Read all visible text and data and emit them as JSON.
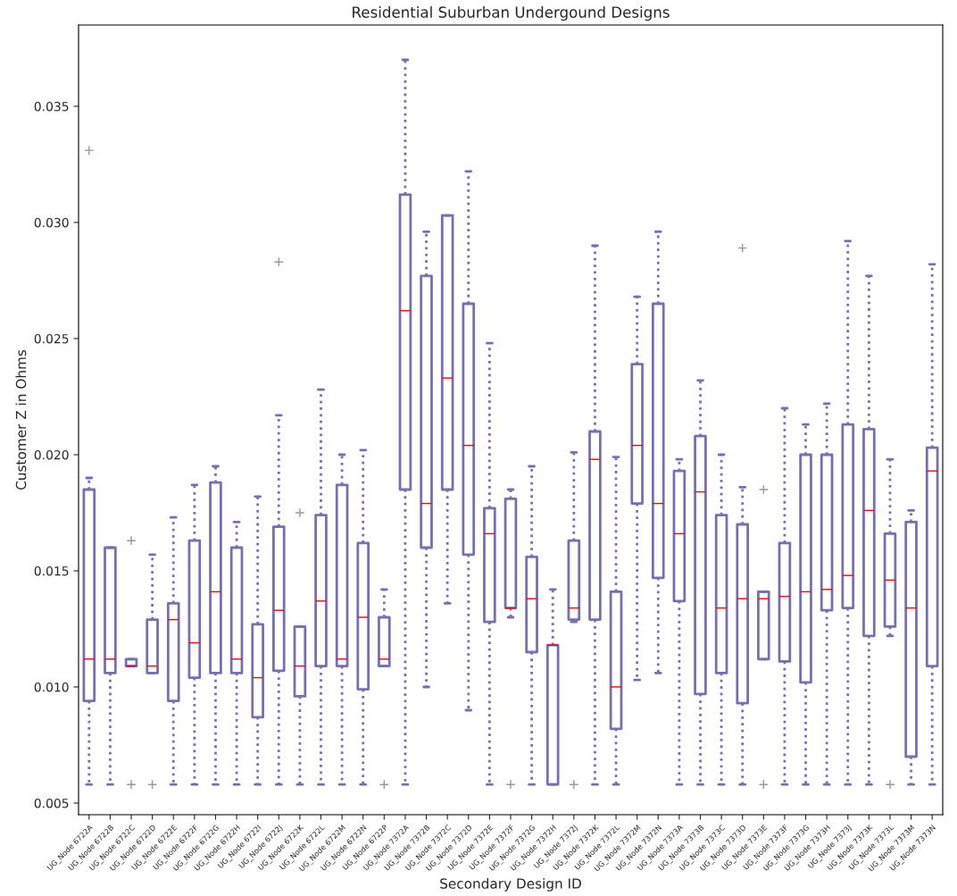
{
  "chart_data": {
    "type": "box",
    "title": "Residential Suburban Undergound Designs",
    "xlabel": "Secondary Design ID",
    "ylabel": "Customer Z in Ohms",
    "categories": [
      "UG_Node 6722A",
      "UG_Node 6722B",
      "UG_Node 6722C",
      "UG_Node 6722D",
      "UG_Node 6722E",
      "UG_Node 6722F",
      "UG_Node 6722G",
      "UG_Node 6722H",
      "UG_Node 6722I",
      "UG_Node 6722J",
      "UG_Node 6722K",
      "UG_Node 6722L",
      "UG_Node 6722M",
      "UG_Node 6722N",
      "UG_Node 6722P",
      "UG_Node 7372A",
      "UG_Node 7372B",
      "UG_Node 7372C",
      "UG_Node 7372D",
      "UG_Node 7372E",
      "UG_Node 7372F",
      "UG_Node 7372G",
      "UG_Node 7372H",
      "UG_Node 7372J",
      "UG_Node 7372K",
      "UG_Node 7372L",
      "UG_Node 7372M",
      "UG_Node 7372N",
      "UG_Node 7373A",
      "UG_Node 7373B",
      "UG_Node 7373C",
      "UG_Node 7373D",
      "UG_Node 7373E",
      "UG_Node 7373F",
      "UG_Node 7373G",
      "UG_Node 7373H",
      "UG_Node 7373J",
      "UG_Node 7373K",
      "UG_Node 7373L",
      "UG_Node 7373M",
      "UG_Node 7373N"
    ],
    "color": "#7570b3",
    "line_style": "dotted",
    "grid": false,
    "ylim": [
      0.0045,
      0.0385
    ],
    "yticks": [
      {
        "value": 0.005,
        "label": "0.005"
      },
      {
        "value": 0.01,
        "label": "0.010"
      },
      {
        "value": 0.015,
        "label": "0.015"
      },
      {
        "value": 0.02,
        "label": "0.020"
      },
      {
        "value": 0.025,
        "label": "0.025"
      },
      {
        "value": 0.03,
        "label": "0.030"
      },
      {
        "value": 0.035,
        "label": "0.035"
      }
    ],
    "boxes": [
      {
        "low": 0.0058,
        "q1": 0.0094,
        "median": 0.0112,
        "q3": 0.0185,
        "high": 0.019,
        "outliers": [
          0.0331
        ]
      },
      {
        "low": 0.0058,
        "q1": 0.0106,
        "median": 0.0112,
        "q3": 0.016,
        "high": 0.016
      },
      {
        "low": 0.0109,
        "q1": 0.0109,
        "median": 0.0109,
        "q3": 0.0112,
        "high": 0.0112,
        "outliers": [
          0.0163,
          0.0058
        ]
      },
      {
        "low": 0.0106,
        "q1": 0.0106,
        "median": 0.0109,
        "q3": 0.0129,
        "high": 0.0157,
        "outliers": [
          0.0058
        ]
      },
      {
        "low": 0.0058,
        "q1": 0.0094,
        "median": 0.0129,
        "q3": 0.0136,
        "high": 0.0173
      },
      {
        "low": 0.0058,
        "q1": 0.0104,
        "median": 0.0119,
        "q3": 0.0163,
        "high": 0.0187
      },
      {
        "low": 0.0058,
        "q1": 0.0106,
        "median": 0.0141,
        "q3": 0.0188,
        "high": 0.0195
      },
      {
        "low": 0.0058,
        "q1": 0.0106,
        "median": 0.0112,
        "q3": 0.016,
        "high": 0.0171
      },
      {
        "low": 0.0058,
        "q1": 0.0087,
        "median": 0.0104,
        "q3": 0.0127,
        "high": 0.0182
      },
      {
        "low": 0.0058,
        "q1": 0.0107,
        "median": 0.0133,
        "q3": 0.0169,
        "high": 0.0217,
        "outliers": [
          0.0283
        ]
      },
      {
        "low": 0.0058,
        "q1": 0.0096,
        "median": 0.0109,
        "q3": 0.0126,
        "high": 0.0126,
        "outliers": [
          0.0175
        ]
      },
      {
        "low": 0.0058,
        "q1": 0.0109,
        "median": 0.0137,
        "q3": 0.0174,
        "high": 0.0228
      },
      {
        "low": 0.0058,
        "q1": 0.0109,
        "median": 0.0112,
        "q3": 0.0187,
        "high": 0.02
      },
      {
        "low": 0.0058,
        "q1": 0.0099,
        "median": 0.013,
        "q3": 0.0162,
        "high": 0.0202
      },
      {
        "low": 0.0109,
        "q1": 0.0109,
        "median": 0.0112,
        "q3": 0.013,
        "high": 0.0142,
        "outliers": [
          0.0058
        ]
      },
      {
        "low": 0.0058,
        "q1": 0.0185,
        "median": 0.0262,
        "q3": 0.0312,
        "high": 0.037
      },
      {
        "low": 0.01,
        "q1": 0.016,
        "median": 0.0179,
        "q3": 0.0277,
        "high": 0.0296
      },
      {
        "low": 0.0136,
        "q1": 0.0185,
        "median": 0.0233,
        "q3": 0.0303,
        "high": 0.0303
      },
      {
        "low": 0.009,
        "q1": 0.0157,
        "median": 0.0204,
        "q3": 0.0265,
        "high": 0.0322
      },
      {
        "low": 0.0058,
        "q1": 0.0128,
        "median": 0.0166,
        "q3": 0.0177,
        "high": 0.0248
      },
      {
        "low": 0.013,
        "q1": 0.0134,
        "median": 0.0134,
        "q3": 0.0181,
        "high": 0.0185,
        "outliers": [
          0.0058
        ]
      },
      {
        "low": 0.0058,
        "q1": 0.0115,
        "median": 0.0138,
        "q3": 0.0156,
        "high": 0.0195
      },
      {
        "low": 0.0058,
        "q1": 0.0058,
        "median": 0.0118,
        "q3": 0.0118,
        "high": 0.0142
      },
      {
        "low": 0.0128,
        "q1": 0.0129,
        "median": 0.0134,
        "q3": 0.0163,
        "high": 0.0201,
        "outliers": [
          0.0058
        ]
      },
      {
        "low": 0.0058,
        "q1": 0.0129,
        "median": 0.0198,
        "q3": 0.021,
        "high": 0.029
      },
      {
        "low": 0.0058,
        "q1": 0.0082,
        "median": 0.01,
        "q3": 0.0141,
        "high": 0.0199
      },
      {
        "low": 0.0103,
        "q1": 0.0179,
        "median": 0.0204,
        "q3": 0.0239,
        "high": 0.0268
      },
      {
        "low": 0.0106,
        "q1": 0.0147,
        "median": 0.0179,
        "q3": 0.0265,
        "high": 0.0296
      },
      {
        "low": 0.0058,
        "q1": 0.0137,
        "median": 0.0166,
        "q3": 0.0193,
        "high": 0.0198
      },
      {
        "low": 0.0058,
        "q1": 0.0097,
        "median": 0.0184,
        "q3": 0.0208,
        "high": 0.0232
      },
      {
        "low": 0.0058,
        "q1": 0.0106,
        "median": 0.0134,
        "q3": 0.0174,
        "high": 0.02
      },
      {
        "low": 0.0058,
        "q1": 0.0093,
        "median": 0.0138,
        "q3": 0.017,
        "high": 0.0186,
        "outliers": [
          0.0289
        ]
      },
      {
        "low": 0.0112,
        "q1": 0.0112,
        "median": 0.0138,
        "q3": 0.0141,
        "high": 0.0141,
        "outliers": [
          0.0185,
          0.0058
        ]
      },
      {
        "low": 0.0058,
        "q1": 0.0111,
        "median": 0.0139,
        "q3": 0.0162,
        "high": 0.022
      },
      {
        "low": 0.0058,
        "q1": 0.0102,
        "median": 0.0141,
        "q3": 0.02,
        "high": 0.0213
      },
      {
        "low": 0.0058,
        "q1": 0.0133,
        "median": 0.0142,
        "q3": 0.02,
        "high": 0.0222
      },
      {
        "low": 0.0058,
        "q1": 0.0134,
        "median": 0.0148,
        "q3": 0.0213,
        "high": 0.0292
      },
      {
        "low": 0.0058,
        "q1": 0.0122,
        "median": 0.0176,
        "q3": 0.0211,
        "high": 0.0277
      },
      {
        "low": 0.0122,
        "q1": 0.0126,
        "median": 0.0146,
        "q3": 0.0166,
        "high": 0.0198,
        "outliers": [
          0.0058
        ]
      },
      {
        "low": 0.0058,
        "q1": 0.007,
        "median": 0.0134,
        "q3": 0.0171,
        "high": 0.0176
      },
      {
        "low": 0.0058,
        "q1": 0.0109,
        "median": 0.0193,
        "q3": 0.0203,
        "high": 0.0282
      }
    ]
  }
}
